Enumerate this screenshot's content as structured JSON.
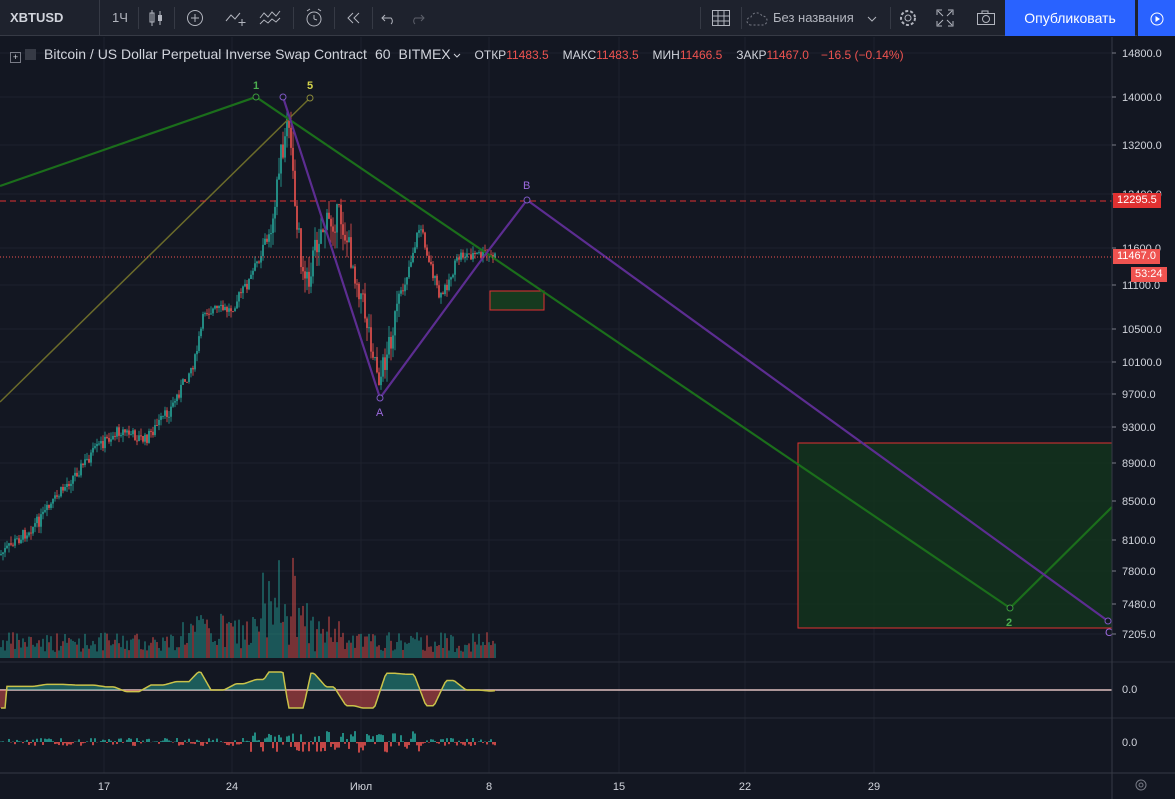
{
  "toolbar": {
    "symbol": "XBTUSD",
    "interval": "1Ч",
    "layout_name": "Без названия",
    "publish_label": "Опубликовать",
    "icons": [
      "candles-icon",
      "add-indicator-icon",
      "compare-icon",
      "indicators-icon",
      "alert-icon",
      "replay-icon",
      "undo-icon",
      "redo-icon",
      "layout-grid-icon",
      "cloud-icon",
      "settings-icon",
      "fullscreen-icon",
      "camera-icon",
      "play-icon"
    ]
  },
  "legend": {
    "title": "Bitcoin / US Dollar Perpetual Inverse Swap Contract",
    "timeframe": "60",
    "exchange": "BITMEX",
    "open_label": "ОТКР",
    "open": "11483.5",
    "high_label": "МАКС",
    "high": "11483.5",
    "low_label": "МИН",
    "low": "11466.5",
    "close_label": "ЗАКР",
    "close": "11467.0",
    "change": "−16.5 (−0.14%)"
  },
  "price_axis": {
    "ticks": [
      "14800.0",
      "14000.0",
      "13200.0",
      "12400.0",
      "11600.0",
      "11100.0",
      "10500.0",
      "10100.0",
      "9700.0",
      "9300.0",
      "8900.0",
      "8500.0",
      "8100.0",
      "7800.0",
      "7480.0",
      "7205.0"
    ],
    "current_price": "11467.0",
    "countdown": "53:24",
    "target_price": "12295.5",
    "osc1_zero": "0.0",
    "osc2_zero": "0.0"
  },
  "time_axis": {
    "ticks": [
      "17",
      "24",
      "Июл",
      "8",
      "15",
      "22",
      "29"
    ]
  },
  "annotations": {
    "wave1": "1",
    "wave5": "5",
    "waveA": "A",
    "waveB": "B",
    "waveC": "C",
    "wave2": "2"
  },
  "colors": {
    "background": "#131722",
    "up": "#26a69a",
    "down": "#ef5350",
    "green_line": "#1b6e1b",
    "purple_line": "#5c2d91",
    "olive_line": "#6b6b2a",
    "publish": "#2962ff"
  }
}
